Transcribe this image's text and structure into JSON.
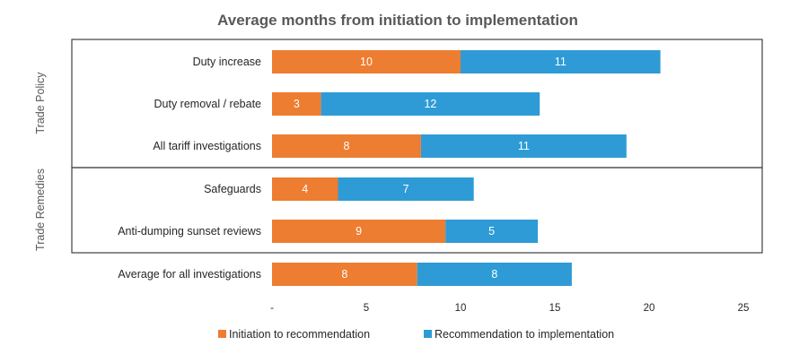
{
  "chart_data": {
    "type": "bar",
    "orientation": "horizontal",
    "stacked": true,
    "title": "Average months from initiation to implementation",
    "xlabel": "",
    "ylabel": "",
    "xlim": [
      0,
      25
    ],
    "x_ticks": [
      "-",
      "5",
      "10",
      "15",
      "20",
      "25"
    ],
    "grid": false,
    "legend_position": "bottom",
    "groups": [
      {
        "label": "Trade Policy",
        "categories": [
          "Duty increase",
          "Duty removal / rebate",
          "All tariff investigations"
        ]
      },
      {
        "label": "Trade Remedies",
        "categories": [
          "Safeguards",
          "Anti-dumping sunset reviews"
        ]
      }
    ],
    "categories": [
      "Duty increase",
      "Duty removal / rebate",
      "All tariff investigations",
      "Safeguards",
      "Anti-dumping sunset reviews",
      "Average for all investigations"
    ],
    "series": [
      {
        "name": "Initiation to recommendation",
        "color": "#ED7D31",
        "values": [
          10,
          2.6,
          7.9,
          3.5,
          9.2,
          7.7
        ],
        "labels": [
          "10",
          "3",
          "8",
          "4",
          "9",
          "8"
        ]
      },
      {
        "name": "Recommendation to implementation",
        "color": "#2E9BD6",
        "values": [
          10.6,
          11.6,
          10.9,
          7.2,
          4.9,
          8.2
        ],
        "labels": [
          "11",
          "12",
          "11",
          "7",
          "5",
          "8"
        ]
      }
    ]
  }
}
